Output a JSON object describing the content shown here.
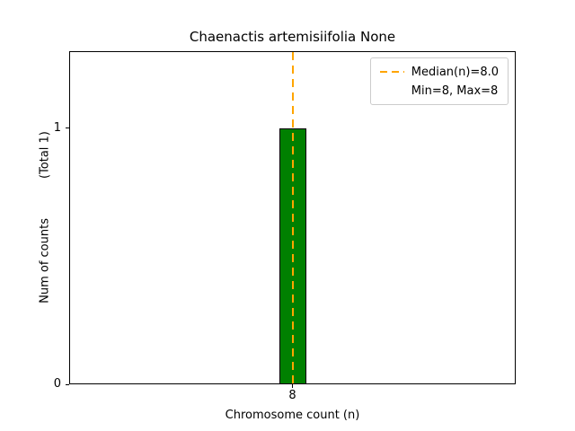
{
  "chart_data": {
    "type": "bar",
    "title": "Chaenactis artemisiifolia None",
    "xlabel": "Chromosome count (n)",
    "ylabel": "Num of counts",
    "ylabel_secondary": "(Total 1)",
    "categories": [
      "8"
    ],
    "values": [
      1
    ],
    "ylim": [
      0,
      1.3
    ],
    "yticks": [
      0,
      1
    ],
    "bar_color": "#008000",
    "bar_edge_color": "#000000",
    "grid": false,
    "median_line": {
      "category": "8",
      "value": 8.0,
      "color": "#ffa500",
      "style": "dashed"
    },
    "legend": {
      "position": "top-right",
      "entries": [
        {
          "label": "Median(n)=8.0",
          "handle": "dashed-line",
          "color": "#ffa500"
        },
        {
          "label": "Min=8, Max=8",
          "handle": "none",
          "color": ""
        }
      ]
    }
  }
}
